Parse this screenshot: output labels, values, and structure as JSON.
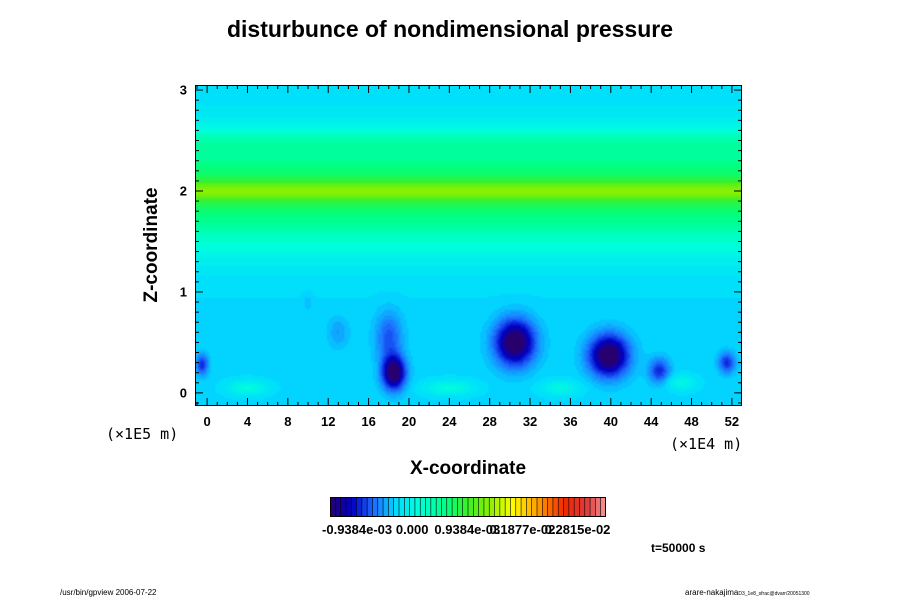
{
  "chart_data": {
    "type": "heatmap",
    "title": "disturbunce of nondimensional pressure",
    "xlabel": "X-coordinate",
    "ylabel": "Z-coordinate",
    "x_scale_note": "(×1E4 m)",
    "y_scale_note": "(×1E5 m)",
    "xlim": [
      -1.2,
      53
    ],
    "ylim": [
      -0.13,
      3.05
    ],
    "x_ticks": [
      0,
      4,
      8,
      12,
      16,
      20,
      24,
      28,
      32,
      36,
      40,
      44,
      48,
      52
    ],
    "y_ticks": [
      0,
      1,
      2,
      3
    ],
    "grid": false,
    "background_level": -0.00025,
    "bands": [
      {
        "z_center": 2.0,
        "half_width": 0.55,
        "amplitude": 0.00105
      },
      {
        "z_center": 2.0,
        "half_width": 0.09,
        "amplitude": 0.00055
      },
      {
        "z_center": 2.5,
        "half_width": 0.1,
        "amplitude": 0.0002
      }
    ],
    "blobs": [
      {
        "x": 30.5,
        "z": 0.5,
        "amplitude": -0.0013,
        "sx": 1.9,
        "sz": 0.22
      },
      {
        "x": 39.8,
        "z": 0.37,
        "amplitude": -0.0013,
        "sx": 1.9,
        "sz": 0.2
      },
      {
        "x": 18.5,
        "z": 0.2,
        "amplitude": -0.0013,
        "sx": 1.1,
        "sz": 0.16
      },
      {
        "x": 18.0,
        "z": 0.55,
        "amplitude": -0.00045,
        "sx": 1.3,
        "sz": 0.25
      },
      {
        "x": -0.5,
        "z": 0.28,
        "amplitude": -0.0006,
        "sx": 0.6,
        "sz": 0.1
      },
      {
        "x": 51.5,
        "z": 0.3,
        "amplitude": -0.0006,
        "sx": 0.8,
        "sz": 0.1
      },
      {
        "x": 44.8,
        "z": 0.22,
        "amplitude": -0.0006,
        "sx": 1.0,
        "sz": 0.12
      },
      {
        "x": 13.0,
        "z": 0.6,
        "amplitude": -0.0002,
        "sx": 1.0,
        "sz": 0.15
      },
      {
        "x": 10.0,
        "z": 0.9,
        "amplitude": -0.0001,
        "sx": 0.5,
        "sz": 0.1
      },
      {
        "x": 4.0,
        "z": 0.05,
        "amplitude": 0.00035,
        "sx": 2.0,
        "sz": 0.08
      },
      {
        "x": 24.0,
        "z": 0.05,
        "amplitude": 0.00035,
        "sx": 2.5,
        "sz": 0.08
      },
      {
        "x": 35.0,
        "z": 0.05,
        "amplitude": 0.0003,
        "sx": 2.0,
        "sz": 0.08
      },
      {
        "x": 47.0,
        "z": 0.1,
        "amplitude": 0.0003,
        "sx": 1.5,
        "sz": 0.08
      }
    ],
    "colorbar": {
      "min": -0.0014,
      "max": 0.0033,
      "labels": [
        "-0.9384e-03",
        "0.000",
        "0.9384e-03",
        "0.1877e-02",
        "0.2815e-02"
      ],
      "label_values": [
        -0.0009384,
        0.0,
        0.0009384,
        0.001877,
        0.002815
      ]
    }
  },
  "time_label": "t=50000 s",
  "footer_left": "/usr/bin/gpview 2006-07-22",
  "footer_right_main": "arare-nakajima",
  "footer_right_sub": "D3_1e8_sfrac@dvarr/20051300"
}
